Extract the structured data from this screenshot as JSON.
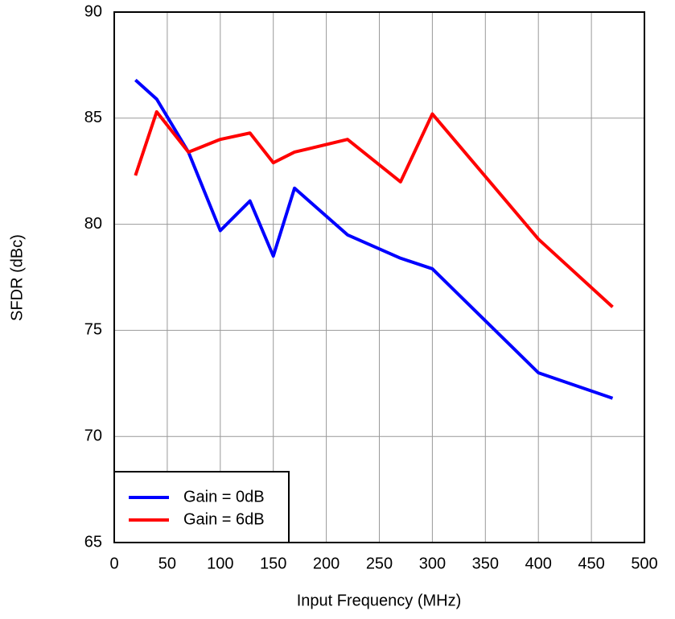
{
  "chart_data": {
    "type": "line",
    "x_label": "Input Frequency (MHz)",
    "y_label": "SFDR (dBc)",
    "x": [
      20,
      40,
      70,
      100,
      128,
      150,
      170,
      220,
      270,
      300,
      400,
      470
    ],
    "series": [
      {
        "name": "Gain = 0dB",
        "color": "#0000ff",
        "values": [
          86.8,
          85.9,
          83.4,
          79.7,
          81.1,
          78.5,
          81.7,
          79.5,
          78.4,
          77.9,
          73.0,
          71.8
        ]
      },
      {
        "name": "Gain = 6dB",
        "color": "#ff0000",
        "values": [
          82.3,
          85.3,
          83.4,
          84.0,
          84.3,
          82.9,
          83.4,
          84.0,
          82.0,
          85.2,
          79.3,
          76.1
        ]
      }
    ],
    "xlim": [
      0,
      500
    ],
    "xticks": [
      0,
      50,
      100,
      150,
      200,
      250,
      300,
      350,
      400,
      450,
      500
    ],
    "ylim": [
      65,
      90
    ],
    "yticks": [
      65,
      70,
      75,
      80,
      85,
      90
    ],
    "grid": true,
    "legend": "lower left"
  }
}
